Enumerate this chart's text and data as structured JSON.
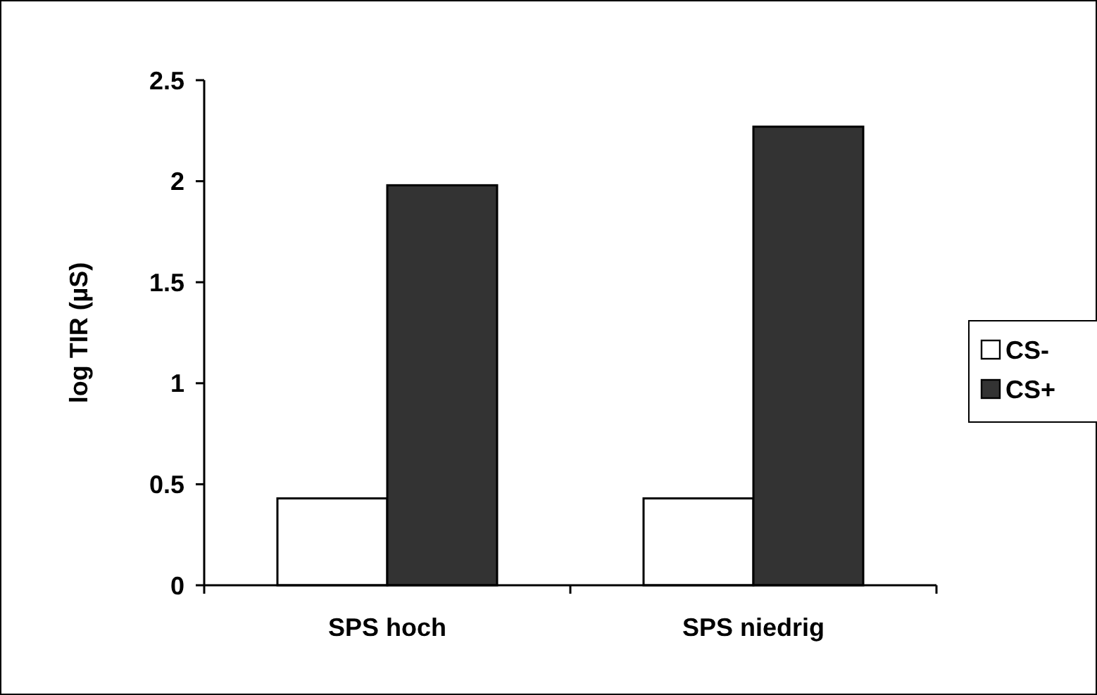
{
  "chart_data": {
    "type": "bar",
    "ylabel": "log TIR (µS)",
    "categories": [
      "SPS hoch",
      "SPS niedrig"
    ],
    "series": [
      {
        "name": "CS-",
        "color": "#ffffff",
        "values": [
          0.43,
          0.43
        ]
      },
      {
        "name": "CS+",
        "color": "#333333",
        "values": [
          1.98,
          2.27
        ]
      }
    ],
    "ylim": [
      0,
      2.5
    ],
    "yticks": [
      0,
      0.5,
      1,
      1.5,
      2,
      2.5
    ],
    "legend": "right",
    "grid": false
  }
}
